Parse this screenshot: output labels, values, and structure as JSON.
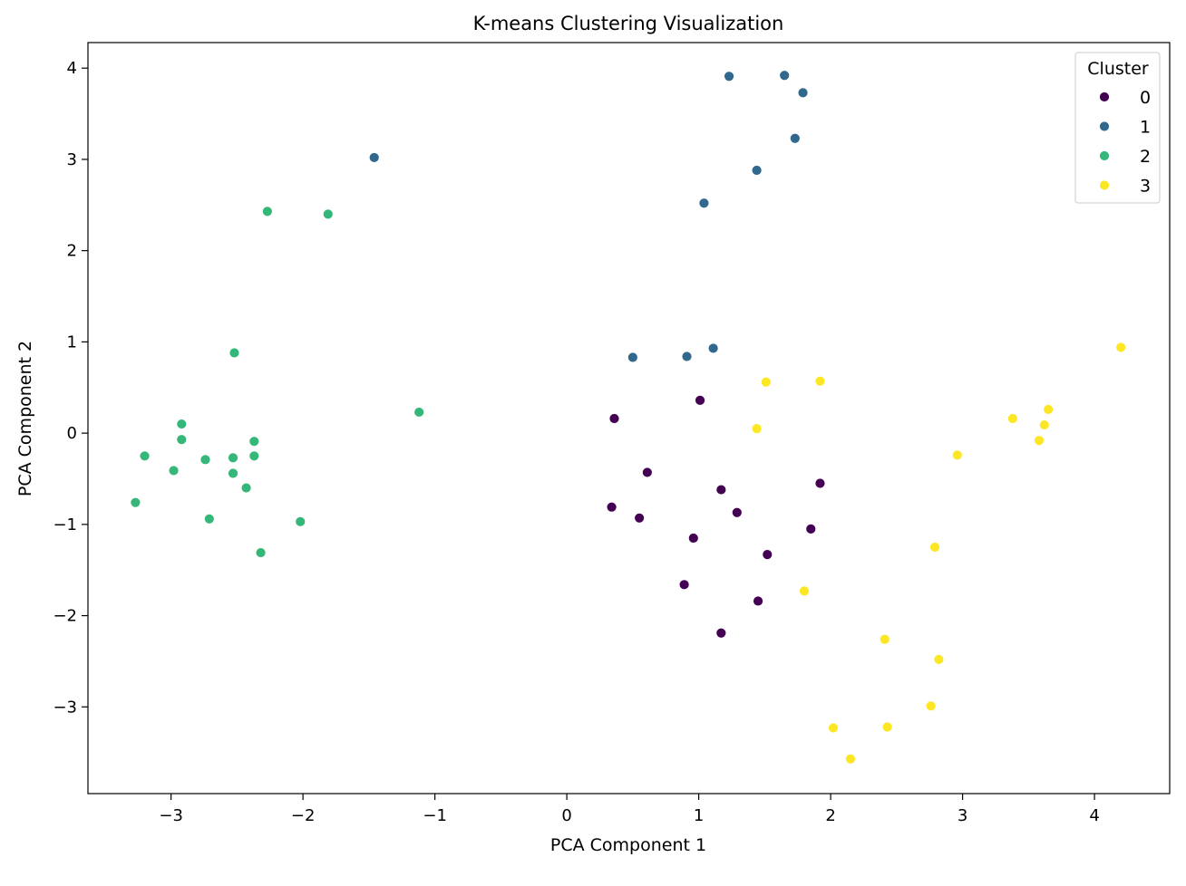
{
  "chart_data": {
    "type": "scatter",
    "title": "K-means Clustering Visualization",
    "xlabel": "PCA Component 1",
    "ylabel": "PCA Component 2",
    "xlim": [
      -3.63,
      4.57
    ],
    "ylim": [
      -3.95,
      4.28
    ],
    "xticks": [
      -3,
      -2,
      -1,
      0,
      1,
      2,
      3,
      4
    ],
    "yticks": [
      -3,
      -2,
      -1,
      0,
      1,
      2,
      3,
      4
    ],
    "grid": false,
    "legend": {
      "title": "Cluster",
      "placement": "top-right"
    },
    "series": [
      {
        "name": "0",
        "color": "#440154",
        "points": [
          [
            0.36,
            0.16
          ],
          [
            1.01,
            0.36
          ],
          [
            0.61,
            -0.43
          ],
          [
            1.17,
            -0.62
          ],
          [
            1.92,
            -0.55
          ],
          [
            0.34,
            -0.81
          ],
          [
            0.55,
            -0.93
          ],
          [
            1.29,
            -0.87
          ],
          [
            1.85,
            -1.05
          ],
          [
            0.96,
            -1.15
          ],
          [
            1.52,
            -1.33
          ],
          [
            0.89,
            -1.66
          ],
          [
            1.45,
            -1.84
          ],
          [
            1.17,
            -2.19
          ]
        ]
      },
      {
        "name": "1",
        "color": "#31688e",
        "points": [
          [
            1.23,
            3.91
          ],
          [
            1.65,
            3.92
          ],
          [
            1.79,
            3.73
          ],
          [
            1.73,
            3.23
          ],
          [
            1.44,
            2.88
          ],
          [
            1.04,
            2.52
          ],
          [
            -1.46,
            3.02
          ],
          [
            0.5,
            0.83
          ],
          [
            0.91,
            0.84
          ],
          [
            1.11,
            0.93
          ]
        ]
      },
      {
        "name": "2",
        "color": "#35b779",
        "points": [
          [
            -2.27,
            2.43
          ],
          [
            -1.81,
            2.4
          ],
          [
            -2.52,
            0.88
          ],
          [
            -1.12,
            0.23
          ],
          [
            -2.92,
            0.1
          ],
          [
            -2.92,
            -0.07
          ],
          [
            -3.2,
            -0.25
          ],
          [
            -2.98,
            -0.41
          ],
          [
            -2.74,
            -0.29
          ],
          [
            -2.53,
            -0.27
          ],
          [
            -2.37,
            -0.09
          ],
          [
            -2.37,
            -0.25
          ],
          [
            -2.53,
            -0.44
          ],
          [
            -2.43,
            -0.6
          ],
          [
            -3.27,
            -0.76
          ],
          [
            -2.71,
            -0.94
          ],
          [
            -2.02,
            -0.97
          ],
          [
            -2.32,
            -1.31
          ]
        ]
      },
      {
        "name": "3",
        "color": "#fde725",
        "points": [
          [
            1.51,
            0.56
          ],
          [
            1.92,
            0.57
          ],
          [
            1.44,
            0.05
          ],
          [
            4.2,
            0.94
          ],
          [
            3.38,
            0.16
          ],
          [
            3.65,
            0.26
          ],
          [
            3.62,
            0.09
          ],
          [
            3.58,
            -0.08
          ],
          [
            2.96,
            -0.24
          ],
          [
            2.79,
            -1.25
          ],
          [
            1.8,
            -1.73
          ],
          [
            2.41,
            -2.26
          ],
          [
            2.82,
            -2.48
          ],
          [
            2.76,
            -2.99
          ],
          [
            2.02,
            -3.23
          ],
          [
            2.43,
            -3.22
          ],
          [
            2.15,
            -3.57
          ]
        ]
      }
    ]
  }
}
